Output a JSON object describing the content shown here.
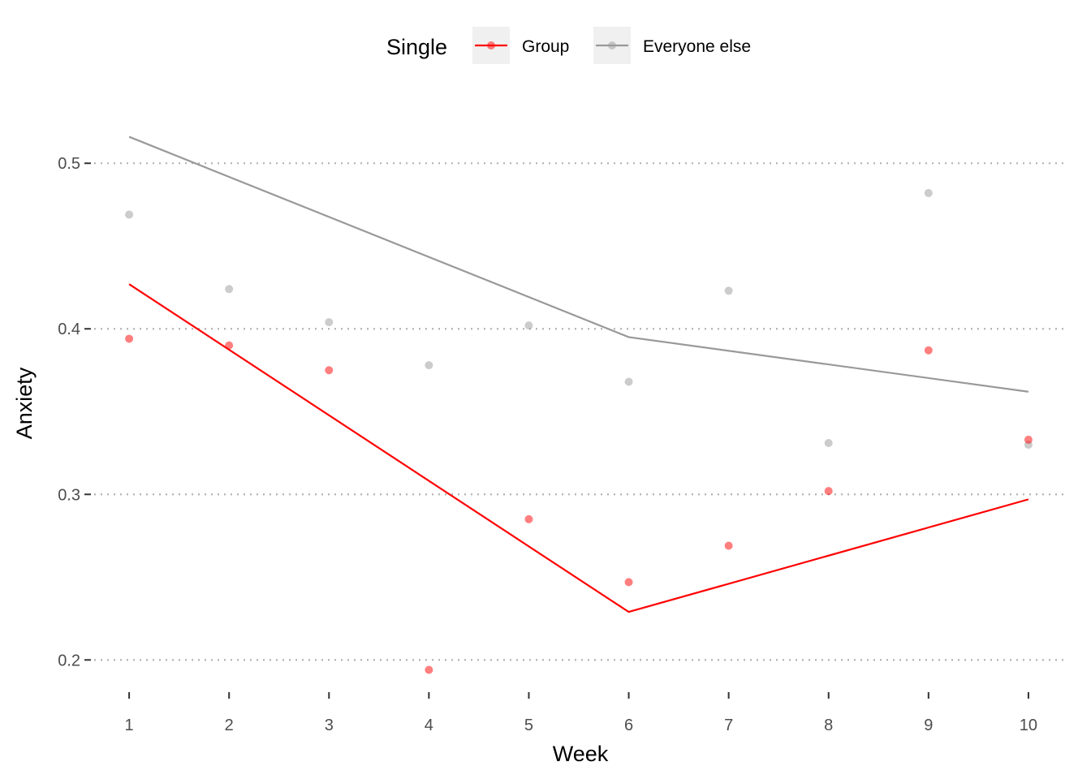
{
  "chart_data": {
    "type": "line",
    "title": "",
    "xlabel": "Week",
    "ylabel": "Anxiety",
    "x": [
      1,
      2,
      3,
      4,
      5,
      6,
      7,
      8,
      9,
      10
    ],
    "x_ticks": [
      "1",
      "2",
      "3",
      "4",
      "5",
      "6",
      "7",
      "8",
      "9",
      "10"
    ],
    "y_ticks": [
      "0.2",
      "0.3",
      "0.4",
      "0.5"
    ],
    "xlim": [
      0.65,
      10.35
    ],
    "ylim": [
      0.182,
      0.53
    ],
    "grid": "horizontal dotted major lines",
    "legend": {
      "title": "Single",
      "placement": "top"
    },
    "series": [
      {
        "name": "Group",
        "color": "#ff0000",
        "points": [
          0.394,
          0.39,
          0.375,
          0.194,
          0.285,
          0.247,
          0.269,
          0.302,
          0.387,
          0.333
        ],
        "line_x": [
          1,
          6,
          10
        ],
        "line_y": [
          0.427,
          0.229,
          0.297
        ]
      },
      {
        "name": "Everyone else",
        "color": "#999999",
        "points": [
          0.469,
          0.424,
          0.404,
          0.378,
          0.402,
          0.368,
          0.423,
          0.331,
          0.482,
          0.33
        ],
        "line_x": [
          1,
          6,
          10
        ],
        "line_y": [
          0.516,
          0.395,
          0.362
        ]
      }
    ]
  }
}
